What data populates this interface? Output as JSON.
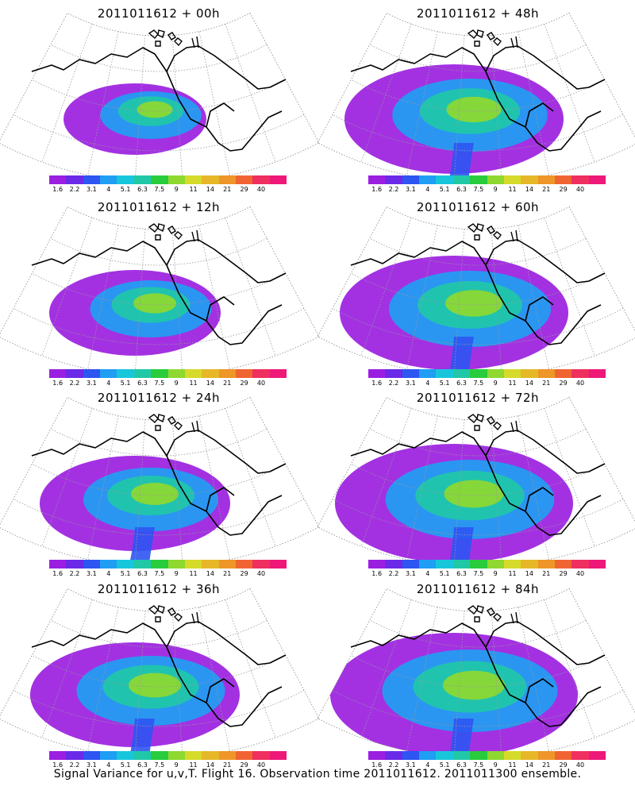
{
  "panels": [
    {
      "title": "2011011612 + 00h",
      "intensity": 0.15
    },
    {
      "title": "2011011612 + 48h",
      "intensity": 0.55
    },
    {
      "title": "2011011612 + 12h",
      "intensity": 0.3
    },
    {
      "title": "2011011612 + 60h",
      "intensity": 0.6
    },
    {
      "title": "2011011612 + 24h",
      "intensity": 0.4
    },
    {
      "title": "2011011612 + 72h",
      "intensity": 0.65
    },
    {
      "title": "2011011612 + 36h",
      "intensity": 0.5
    },
    {
      "title": "2011011612 + 84h",
      "intensity": 0.7
    }
  ],
  "legend": {
    "levels": [
      "1.6",
      "2.2",
      "3.1",
      "4",
      "5.1",
      "6.3",
      "7.5",
      "9",
      "11",
      "14",
      "21",
      "29",
      "40"
    ],
    "colors": [
      "#9b1fe0",
      "#6a2ae8",
      "#2d55f2",
      "#1f9ef3",
      "#18c6dc",
      "#20c8a8",
      "#28cc3c",
      "#8ed830",
      "#d6da2a",
      "#e6b828",
      "#ee9628",
      "#f06432",
      "#ef2f5e",
      "#ee1878"
    ]
  },
  "caption": "Signal Variance for u,v,T. Flight 16. Observation time 2011011612. 2011011300 ensemble."
}
